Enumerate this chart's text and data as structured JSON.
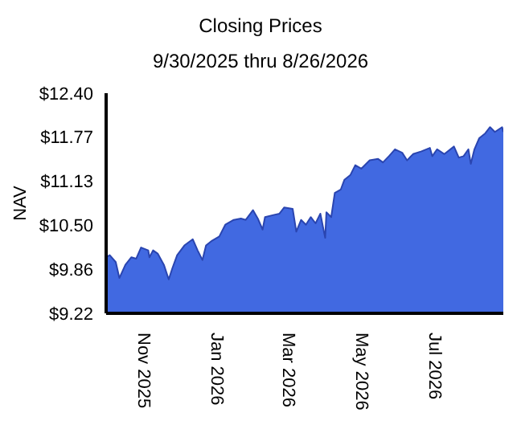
{
  "chart_data": {
    "type": "area",
    "title": "Closing Prices",
    "subtitle": "9/30/2025 thru 8/26/2026",
    "ylabel": "NAV",
    "x": [
      "2025-09-30",
      "2025-10-03",
      "2025-10-08",
      "2025-10-11",
      "2025-10-16",
      "2025-10-21",
      "2025-10-25",
      "2025-10-29",
      "2025-11-04",
      "2025-11-05",
      "2025-11-08",
      "2025-11-12",
      "2025-11-17",
      "2025-11-21",
      "2025-11-24",
      "2025-11-28",
      "2025-12-04",
      "2025-12-11",
      "2025-12-15",
      "2025-12-19",
      "2025-12-22",
      "2025-12-27",
      "2026-01-02",
      "2026-01-07",
      "2026-01-14",
      "2026-01-20",
      "2026-01-24",
      "2026-01-30",
      "2026-02-03",
      "2026-02-07",
      "2026-02-09",
      "2026-02-16",
      "2026-02-21",
      "2026-02-25",
      "2026-03-04",
      "2026-03-07",
      "2026-03-11",
      "2026-03-15",
      "2026-03-19",
      "2026-03-23",
      "2026-03-27",
      "2026-03-31",
      "2026-04-01",
      "2026-04-05",
      "2026-04-08",
      "2026-04-13",
      "2026-04-16",
      "2026-04-21",
      "2026-04-25",
      "2026-04-30",
      "2026-05-07",
      "2026-05-14",
      "2026-05-18",
      "2026-05-23",
      "2026-05-28",
      "2026-06-03",
      "2026-06-07",
      "2026-06-12",
      "2026-06-19",
      "2026-06-26",
      "2026-06-28",
      "2026-07-02",
      "2026-07-08",
      "2026-07-16",
      "2026-07-20",
      "2026-07-24",
      "2026-07-28",
      "2026-07-30",
      "2026-08-02",
      "2026-08-06",
      "2026-08-11",
      "2026-08-15",
      "2026-08-19",
      "2026-08-25",
      "2026-08-26"
    ],
    "series": [
      {
        "color": "#4169e1",
        "values": [
          10.03,
          10.06,
          9.96,
          9.73,
          9.92,
          10.03,
          10.01,
          10.17,
          10.13,
          10.03,
          10.13,
          10.08,
          9.92,
          9.71,
          9.87,
          10.06,
          10.2,
          10.29,
          10.13,
          9.99,
          10.2,
          10.27,
          10.33,
          10.5,
          10.57,
          10.59,
          10.57,
          10.71,
          10.59,
          10.43,
          10.61,
          10.64,
          10.66,
          10.75,
          10.73,
          10.4,
          10.57,
          10.5,
          10.61,
          10.52,
          10.66,
          10.31,
          10.68,
          10.61,
          10.96,
          11.01,
          11.15,
          11.22,
          11.36,
          11.31,
          11.43,
          11.45,
          11.4,
          11.49,
          11.59,
          11.54,
          11.43,
          11.52,
          11.56,
          11.61,
          11.49,
          11.59,
          11.52,
          11.63,
          11.47,
          11.49,
          11.59,
          11.38,
          11.59,
          11.75,
          11.82,
          11.91,
          11.84,
          11.91,
          11.84
        ]
      }
    ],
    "xlim": [
      "2025-09-30",
      "2026-08-26"
    ],
    "xticks": [
      {
        "value": "2025-11-01",
        "label": "Nov 2025"
      },
      {
        "value": "2026-01-01",
        "label": "Jan 2026"
      },
      {
        "value": "2026-03-01",
        "label": "Mar 2026"
      },
      {
        "value": "2026-05-01",
        "label": "May 2026"
      },
      {
        "value": "2026-07-01",
        "label": "Jul 2026"
      }
    ],
    "ylim": [
      9.22,
      12.4
    ],
    "yticks": [
      {
        "value": 9.22,
        "label": "$9.22"
      },
      {
        "value": 9.86,
        "label": "$9.86"
      },
      {
        "value": 10.5,
        "label": "$10.50"
      },
      {
        "value": 11.13,
        "label": "$11.13"
      },
      {
        "value": 11.77,
        "label": "$11.77"
      },
      {
        "value": 12.4,
        "label": "$12.40"
      }
    ],
    "grid": false,
    "legend": false
  }
}
